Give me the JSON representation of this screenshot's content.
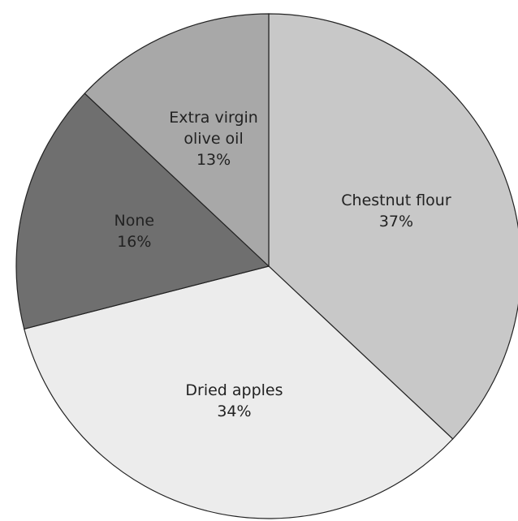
{
  "chart_data": {
    "type": "pie",
    "categories": [
      "Chestnut flour",
      "Dried apples",
      "None",
      "Extra virgin olive oil"
    ],
    "values": [
      37,
      34,
      16,
      13
    ],
    "value_labels": [
      "37%",
      "34%",
      "16%",
      "13%"
    ],
    "colors": [
      "#c8c8c8",
      "#ececec",
      "#6f6f6f",
      "#a8a8a8"
    ]
  }
}
